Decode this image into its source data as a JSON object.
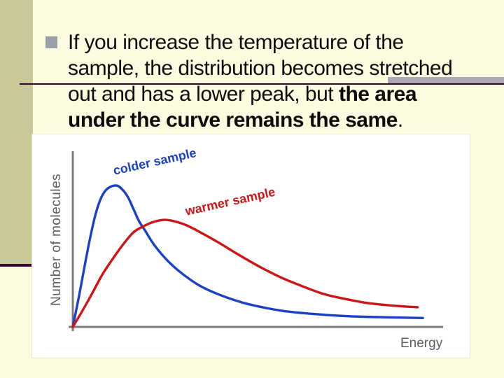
{
  "slide": {
    "colors": {
      "background": "#fcfbe0",
      "side_band": "#cbc897",
      "accent_line": "#33092b",
      "accent_bar": "#a8a9b4",
      "band_underline": "#3a0a33",
      "bullet": "#99a0a7",
      "body_text": "#0d0d0d"
    },
    "bullet_text": {
      "l1": "If you increase the temperature of the",
      "l2": "sample, the distribution becomes stretched",
      "l3_regular": "out and has a lower peak, but ",
      "l3_bold": "the area",
      "l4_bold": "under the curve remains the same",
      "l4_suffix": "."
    }
  },
  "chart": {
    "ylabel": "Number of molecules",
    "xlabel": "Energy",
    "colder_label": "colder sample",
    "warmer_label": "warmer sample",
    "colors": {
      "colder_curve": "#1a41c8",
      "warmer_curve": "#ce1414",
      "axis": "#7c7c7c",
      "axis_labels": "#5c5c5c",
      "plot_background": "#ffffff"
    }
  },
  "chart_data": {
    "type": "line",
    "title": "",
    "xlabel": "Energy",
    "ylabel": "Number of molecules",
    "x_range": [
      0,
      10
    ],
    "y_range": [
      0,
      1.05
    ],
    "grid": false,
    "legend": "inline rotated annotations above each curve",
    "axis_ticks": "none (qualitative axes)",
    "series": [
      {
        "name": "colder sample",
        "color": "#1a41c8",
        "peak": {
          "x": 1.18,
          "y": 1.0
        },
        "points": [
          [
            0,
            0
          ],
          [
            0.17,
            0.22
          ],
          [
            0.32,
            0.43
          ],
          [
            0.47,
            0.63
          ],
          [
            0.62,
            0.8
          ],
          [
            0.78,
            0.92
          ],
          [
            0.95,
            0.98
          ],
          [
            1.18,
            1.0
          ],
          [
            1.35,
            0.97
          ],
          [
            1.5,
            0.915
          ],
          [
            1.65,
            0.83
          ],
          [
            1.8,
            0.745
          ],
          [
            1.95,
            0.685
          ],
          [
            2.22,
            0.575
          ],
          [
            2.6,
            0.46
          ],
          [
            3.0,
            0.37
          ],
          [
            3.45,
            0.29
          ],
          [
            4.0,
            0.225
          ],
          [
            4.7,
            0.165
          ],
          [
            5.65,
            0.115
          ],
          [
            6.6,
            0.09
          ],
          [
            7.55,
            0.075
          ],
          [
            8.5,
            0.068
          ],
          [
            9.49,
            0.063
          ]
        ]
      },
      {
        "name": "warmer sample",
        "color": "#ce1414",
        "peak": {
          "x": 2.5,
          "y": 0.757
        },
        "points": [
          [
            0,
            0
          ],
          [
            0.23,
            0.1
          ],
          [
            0.51,
            0.23
          ],
          [
            0.8,
            0.37
          ],
          [
            1.08,
            0.48
          ],
          [
            1.37,
            0.585
          ],
          [
            1.65,
            0.67
          ],
          [
            1.94,
            0.715
          ],
          [
            2.22,
            0.745
          ],
          [
            2.5,
            0.757
          ],
          [
            2.78,
            0.745
          ],
          [
            3.07,
            0.72
          ],
          [
            3.45,
            0.67
          ],
          [
            3.93,
            0.6
          ],
          [
            4.5,
            0.51
          ],
          [
            5.07,
            0.425
          ],
          [
            5.64,
            0.35
          ],
          [
            6.2,
            0.29
          ],
          [
            6.77,
            0.235
          ],
          [
            7.34,
            0.2
          ],
          [
            7.91,
            0.172
          ],
          [
            8.48,
            0.155
          ],
          [
            8.96,
            0.145
          ],
          [
            9.35,
            0.139
          ]
        ]
      }
    ]
  }
}
